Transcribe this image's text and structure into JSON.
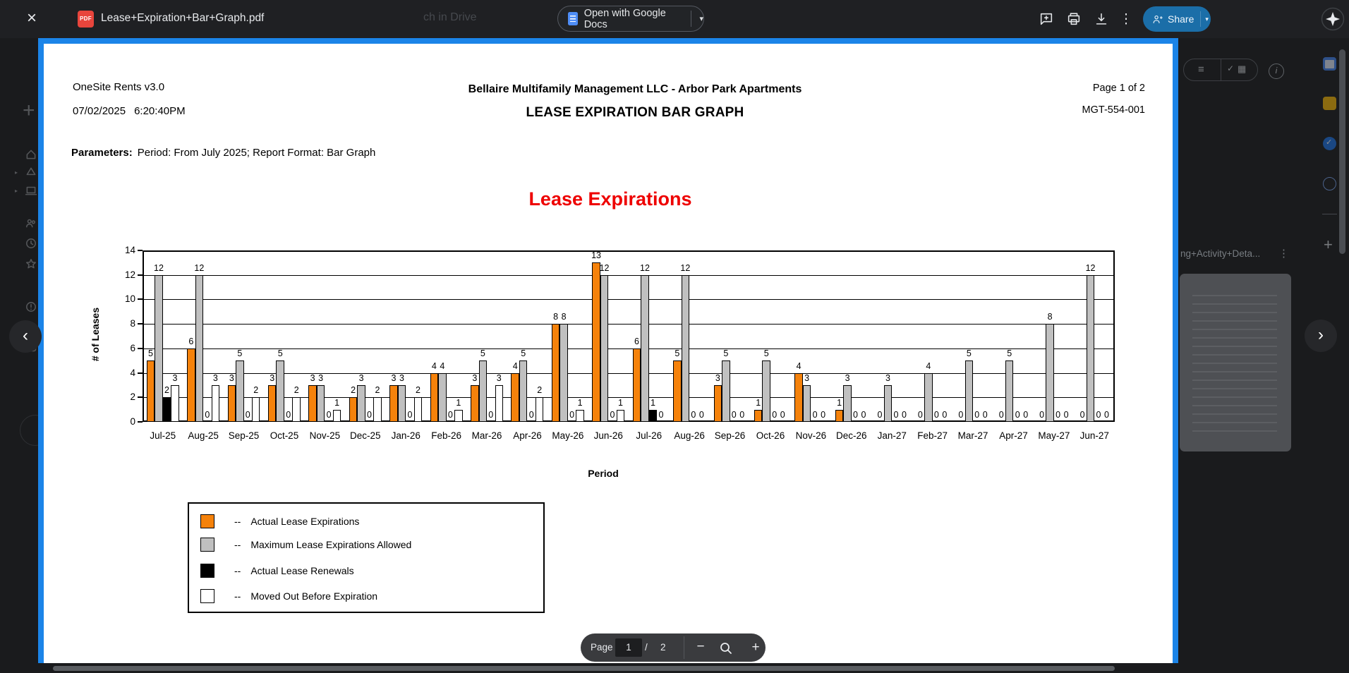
{
  "toolbar": {
    "filename": "Lease+Expiration+Bar+Graph.pdf",
    "background_ghost_text": "ch in Drive",
    "pdf_badge": "PDF",
    "open_with_label": "Open with Google Docs",
    "share_label": "Share",
    "close_glyph": "×",
    "caret_glyph": "▾",
    "more_glyph": "⋮"
  },
  "nav": {
    "prev_glyph": "‹",
    "next_glyph": "›"
  },
  "side_panel": {
    "card_title": "ng+Activity+Deta...",
    "more_glyph": "⋮",
    "info_glyph": "i",
    "menu_glyph": "≡",
    "grid_glyph": "▦",
    "check_glyph": "✓",
    "add_glyph": "+"
  },
  "rail": {
    "new_glyph": "+",
    "expand_glyph": "▸"
  },
  "pdf": {
    "app_version": "OneSite Rents v3.0",
    "date": "07/02/2025",
    "time": "6:20:40PM",
    "company_title": "Bellaire Multifamily Management LLC - Arbor Park Apartments",
    "report_title": "LEASE EXPIRATION BAR GRAPH",
    "page_info": "Page 1 of 2",
    "report_code": "MGT-554-001",
    "parameters_label": "Parameters:",
    "parameters_value": "Period: From July 2025; Report Format: Bar Graph"
  },
  "chart_data": {
    "type": "bar",
    "title": "Lease Expirations",
    "title_color": "#ee0000",
    "xlabel": "Period",
    "ylabel": "# of Leases",
    "ylim": [
      0,
      14
    ],
    "ytick_step": 2,
    "grid": "horizontal",
    "legend_position": "bottom-left-box",
    "legend_prefix": "--",
    "bar_value_labels": true,
    "categories": [
      "Jul-25",
      "Aug-25",
      "Sep-25",
      "Oct-25",
      "Nov-25",
      "Dec-25",
      "Jan-26",
      "Feb-26",
      "Mar-26",
      "Apr-26",
      "May-26",
      "Jun-26",
      "Jul-26",
      "Aug-26",
      "Sep-26",
      "Oct-26",
      "Nov-26",
      "Dec-26",
      "Jan-27",
      "Feb-27",
      "Mar-27",
      "Apr-27",
      "May-27",
      "Jun-27"
    ],
    "series": [
      {
        "name": "Actual Lease Expirations",
        "color": "#F5820B",
        "values": [
          5,
          6,
          3,
          3,
          3,
          2,
          3,
          4,
          3,
          4,
          8,
          13,
          6,
          5,
          3,
          1,
          4,
          1,
          0,
          0,
          0,
          0,
          0,
          0
        ]
      },
      {
        "name": "Maximum Lease Expirations Allowed",
        "color": "#C0C0C0",
        "values": [
          12,
          12,
          5,
          5,
          3,
          3,
          3,
          4,
          5,
          5,
          8,
          12,
          12,
          12,
          5,
          5,
          3,
          3,
          3,
          4,
          5,
          5,
          8,
          12
        ]
      },
      {
        "name": "Actual Lease Renewals",
        "color": "#000000",
        "values": [
          2,
          0,
          0,
          0,
          0,
          0,
          0,
          0,
          0,
          0,
          0,
          0,
          1,
          0,
          0,
          0,
          0,
          0,
          0,
          0,
          0,
          0,
          0,
          0
        ]
      },
      {
        "name": "Moved Out Before Expiration",
        "color": "#FFFFFF",
        "values": [
          3,
          3,
          2,
          2,
          1,
          2,
          2,
          1,
          3,
          2,
          1,
          1,
          0,
          0,
          0,
          0,
          0,
          0,
          0,
          0,
          0,
          0,
          0,
          0
        ]
      }
    ]
  },
  "pager": {
    "label": "Page",
    "current": "1",
    "separator": "/",
    "total": "2",
    "zoom_out_glyph": "−",
    "zoom_in_glyph": "+"
  }
}
